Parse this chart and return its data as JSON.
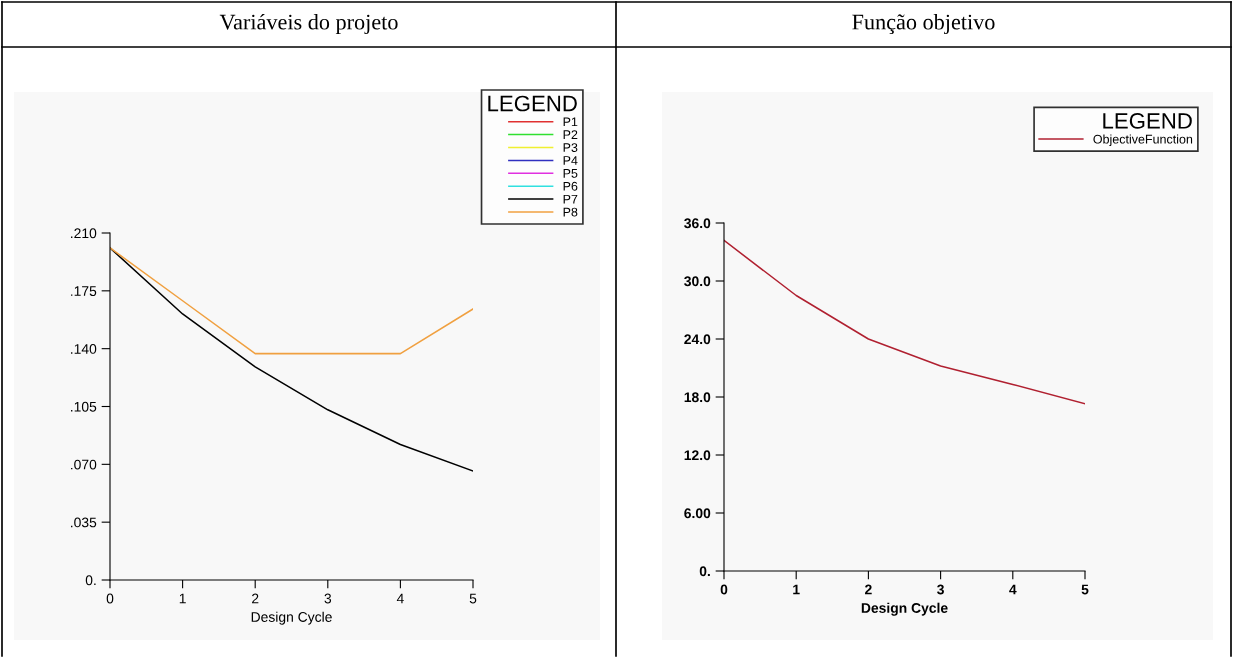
{
  "chart_data": [
    {
      "type": "line",
      "title": "Variáveis do projeto",
      "xlabel": "Design Cycle",
      "legend_title": "LEGEND",
      "legend": "top right",
      "grid": false,
      "x": [
        0,
        1,
        2,
        3,
        4,
        5
      ],
      "xlim": [
        0,
        5
      ],
      "xticks": [
        0,
        1,
        2,
        3,
        4,
        5
      ],
      "ylim": [
        0,
        0.21
      ],
      "yticks": [
        {
          "value": 0,
          "label": "0."
        },
        {
          "value": 0.035,
          "label": ".035"
        },
        {
          "value": 0.07,
          "label": ".070"
        },
        {
          "value": 0.105,
          "label": ".105"
        },
        {
          "value": 0.14,
          "label": ".140"
        },
        {
          "value": 0.175,
          "label": ".175"
        },
        {
          "value": 0.21,
          "label": ".210"
        }
      ],
      "series": [
        {
          "name": "P1",
          "color": "#e03030",
          "values": [
            null,
            null,
            null,
            null,
            null,
            null
          ]
        },
        {
          "name": "P2",
          "color": "#30e030",
          "values": [
            null,
            null,
            null,
            null,
            null,
            null
          ]
        },
        {
          "name": "P3",
          "color": "#f0f030",
          "values": [
            null,
            null,
            null,
            null,
            null,
            null
          ]
        },
        {
          "name": "P4",
          "color": "#3030c0",
          "values": [
            null,
            null,
            null,
            null,
            null,
            null
          ]
        },
        {
          "name": "P5",
          "color": "#e030e0",
          "values": [
            null,
            null,
            null,
            null,
            null,
            null
          ]
        },
        {
          "name": "P6",
          "color": "#30e0e0",
          "values": [
            null,
            null,
            null,
            null,
            null,
            null
          ]
        },
        {
          "name": "P7",
          "color": "#000000",
          "values": [
            0.201,
            0.161,
            0.129,
            0.103,
            0.082,
            0.066
          ]
        },
        {
          "name": "P8",
          "color": "#f0a040",
          "values": [
            0.201,
            0.169,
            0.137,
            0.137,
            0.137,
            0.164
          ]
        }
      ]
    },
    {
      "type": "line",
      "title": "Função objetivo",
      "xlabel": "Design Cycle",
      "legend_title": "LEGEND",
      "legend": "top right",
      "grid": false,
      "x": [
        0,
        1,
        2,
        3,
        4,
        5
      ],
      "xlim": [
        0,
        5
      ],
      "xticks": [
        0,
        1,
        2,
        3,
        4,
        5
      ],
      "ylim": [
        0,
        36
      ],
      "yticks": [
        {
          "value": 0,
          "label": "0."
        },
        {
          "value": 6,
          "label": "6.00"
        },
        {
          "value": 12,
          "label": "12.0"
        },
        {
          "value": 18,
          "label": "18.0"
        },
        {
          "value": 24,
          "label": "24.0"
        },
        {
          "value": 30,
          "label": "30.0"
        },
        {
          "value": 36,
          "label": "36.0"
        }
      ],
      "series": [
        {
          "name": "ObjectiveFunction",
          "color": "#b02030",
          "values": [
            34.2,
            28.5,
            24.0,
            21.2,
            19.3,
            17.3
          ]
        }
      ]
    }
  ]
}
